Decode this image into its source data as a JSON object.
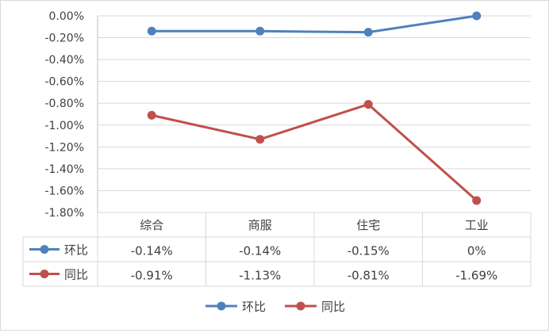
{
  "chart_data": {
    "type": "line",
    "title": "",
    "xlabel": "",
    "ylabel": "",
    "categories": [
      "综合",
      "商服",
      "住宅",
      "工业"
    ],
    "ylim": [
      -1.8,
      0.0
    ],
    "ytick_step": 0.2,
    "ytick_labels": [
      "0.00%",
      "-0.20%",
      "-0.40%",
      "-0.60%",
      "-0.80%",
      "-1.00%",
      "-1.20%",
      "-1.40%",
      "-1.60%",
      "-1.80%"
    ],
    "grid": true,
    "legend": "bottom",
    "data_table": true,
    "series": [
      {
        "name": "环比",
        "color": "#4f81bd",
        "values": [
          -0.14,
          -0.14,
          -0.15,
          0.0
        ],
        "labels": [
          "-0.14%",
          "-0.14%",
          "-0.15%",
          "0%"
        ]
      },
      {
        "name": "同比",
        "color": "#c0504d",
        "values": [
          -0.91,
          -1.13,
          -0.81,
          -1.69
        ],
        "labels": [
          "-0.91%",
          "-1.13%",
          "-0.81%",
          "-1.69%"
        ]
      }
    ]
  }
}
